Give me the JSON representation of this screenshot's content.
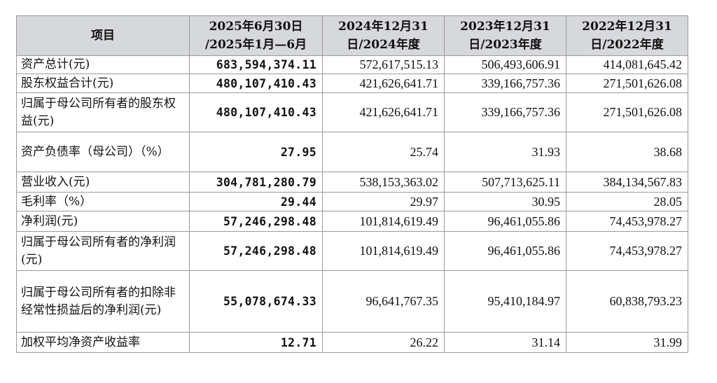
{
  "table": {
    "headers": [
      {
        "line1": "项目",
        "line2": ""
      },
      {
        "line1": "2025年6月30日",
        "line2": "/2025年1月—6月"
      },
      {
        "line1": "2024年12月31",
        "line2": "日/2024年度"
      },
      {
        "line1": "2023年12月31",
        "line2": "日/2023年度"
      },
      {
        "line1": "2022年12月31",
        "line2": "日/2022年度"
      }
    ],
    "rows": [
      {
        "label": "资产总计(元)",
        "v2025": "683,594,374.11",
        "v2024": "572,617,515.13",
        "v2023": "506,493,606.91",
        "v2022": "414,081,645.42"
      },
      {
        "label": "股东权益合计(元)",
        "v2025": "480,107,410.43",
        "v2024": "421,626,641.71",
        "v2023": "339,166,757.36",
        "v2022": "271,501,626.08"
      },
      {
        "label": "归属于母公司所有者的股东权益(元)",
        "v2025": "480,107,410.43",
        "v2024": "421,626,641.71",
        "v2023": "339,166,757.36",
        "v2022": "271,501,626.08"
      },
      {
        "label": "资产负债率（母公司）（%）",
        "v2025": "27.95",
        "v2024": "25.74",
        "v2023": "31.93",
        "v2022": "38.68"
      },
      {
        "label": "营业收入(元)",
        "v2025": "304,781,280.79",
        "v2024": "538,153,363.02",
        "v2023": "507,713,625.11",
        "v2022": "384,134,567.83"
      },
      {
        "label": "毛利率（%）",
        "v2025": "29.44",
        "v2024": "29.97",
        "v2023": "30.95",
        "v2022": "28.05"
      },
      {
        "label": "净利润(元)",
        "v2025": "57,246,298.48",
        "v2024": "101,814,619.49",
        "v2023": "96,461,055.86",
        "v2022": "74,453,978.27"
      },
      {
        "label": "归属于母公司所有者的净利润(元)",
        "v2025": "57,246,298.48",
        "v2024": "101,814,619.49",
        "v2023": "96,461,055.86",
        "v2022": "74,453,978.27"
      },
      {
        "label": "归属于母公司所有者的扣除非经常性损益后的净利润(元)",
        "v2025": "55,078,674.33",
        "v2024": "96,641,767.35",
        "v2023": "95,410,184.97",
        "v2022": "60,838,793.23"
      },
      {
        "label": "加权平均净资产收益率",
        "v2025": "12.71",
        "v2024": "26.22",
        "v2023": "31.14",
        "v2022": "31.99"
      }
    ]
  }
}
